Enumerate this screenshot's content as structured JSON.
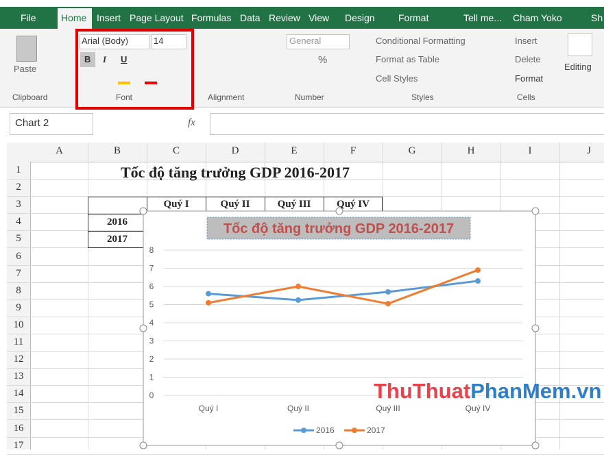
{
  "tabs": [
    "File",
    "Home",
    "Insert",
    "Page Layout",
    "Formulas",
    "Data",
    "Review",
    "View",
    "Design",
    "Format",
    "Tell me...",
    "Cham Yoko",
    "Sh"
  ],
  "ribbon": {
    "clipboard": {
      "paste": "Paste",
      "label": "Clipboard"
    },
    "font": {
      "name": "Arial (Body)",
      "size": "14",
      "buttons": [
        "B",
        "I",
        "U"
      ],
      "label": "Font"
    },
    "alignment": {
      "label": "Alignment"
    },
    "number": {
      "format": "General",
      "percent": "%",
      "label": "Number"
    },
    "styles": {
      "items": [
        "Conditional Formatting",
        "Format as Table",
        "Cell Styles"
      ],
      "label": "Styles"
    },
    "cells": {
      "items": [
        "Insert",
        "Delete",
        "Format"
      ],
      "label": "Cells"
    },
    "editing": {
      "label": "Editing"
    }
  },
  "formula_bar": {
    "name_box": "Chart 2",
    "fx": "fx"
  },
  "sheet": {
    "columns": [
      "A",
      "B",
      "C",
      "D",
      "E",
      "F",
      "G",
      "H",
      "I",
      "J"
    ],
    "rows": [
      "1",
      "2",
      "3",
      "4",
      "5",
      "6",
      "7",
      "8",
      "9",
      "10",
      "11",
      "12",
      "13",
      "14",
      "15",
      "16",
      "17"
    ],
    "title": "Tốc độ tăng trưởng GDP 2016-2017",
    "table_header": [
      "Quý I",
      "Quý II",
      "Quý III",
      "Quý IV"
    ],
    "row_labels": [
      "2016",
      "2017"
    ]
  },
  "chart_data": {
    "type": "line",
    "title": "Tốc độ tăng trưởng GDP 2016-2017",
    "categories": [
      "Quý I",
      "Quý II",
      "Quý III",
      "Quý IV"
    ],
    "series": [
      {
        "name": "2016",
        "color": "#5b9bd5",
        "values": [
          5.6,
          5.25,
          5.7,
          6.3
        ]
      },
      {
        "name": "2017",
        "color": "#ed7d31",
        "values": [
          5.1,
          6,
          5.05,
          6.9
        ]
      }
    ],
    "ylim": [
      0,
      8
    ],
    "yticks": [
      0,
      1,
      2,
      3,
      4,
      5,
      6,
      7,
      8
    ],
    "grid": true,
    "legend": "bottom"
  },
  "watermark": [
    "ThuThuat",
    "PhanMem",
    ".vn"
  ]
}
